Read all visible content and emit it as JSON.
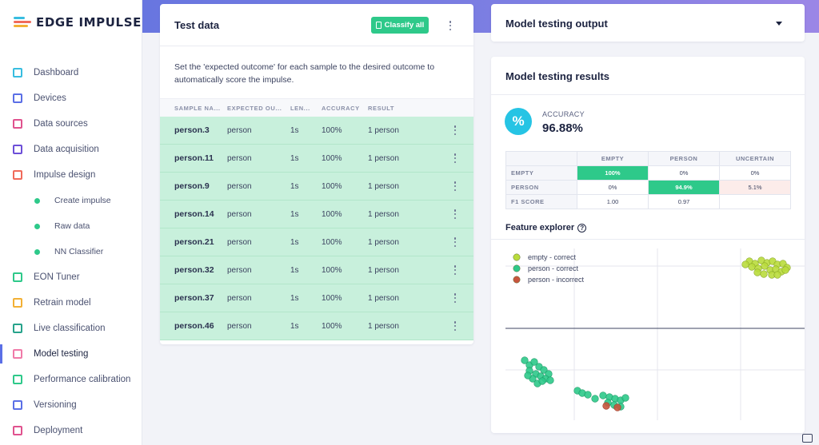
{
  "brand": {
    "name": "EDGE IMPULSE"
  },
  "sidebar": {
    "items": [
      {
        "label": "Dashboard",
        "icon": "monitor-icon",
        "color": "#38bde0"
      },
      {
        "label": "Devices",
        "icon": "chip-icon",
        "color": "#5b6fe6"
      },
      {
        "label": "Data sources",
        "icon": "wand-icon",
        "color": "#e0528e"
      },
      {
        "label": "Data acquisition",
        "icon": "database-icon",
        "color": "#6d4fd8"
      },
      {
        "label": "Impulse design",
        "icon": "pulse-icon",
        "color": "#f06a5a"
      },
      {
        "label": "Create impulse",
        "sub": true
      },
      {
        "label": "Raw data",
        "sub": true
      },
      {
        "label": "NN Classifier",
        "sub": true
      },
      {
        "label": "EON Tuner",
        "icon": "gauge-icon",
        "color": "#2ec98a"
      },
      {
        "label": "Retrain model",
        "icon": "shuffle-icon",
        "color": "#f2b035"
      },
      {
        "label": "Live classification",
        "icon": "signal-icon",
        "color": "#27a38b"
      },
      {
        "label": "Model testing",
        "icon": "clipboard-icon",
        "color": "#f07aa8",
        "active": true
      },
      {
        "label": "Performance calibration",
        "icon": "chart-icon",
        "color": "#2ec98a"
      },
      {
        "label": "Versioning",
        "icon": "branch-icon",
        "color": "#5b6fe6"
      },
      {
        "label": "Deployment",
        "icon": "box-icon",
        "color": "#e0528e"
      }
    ]
  },
  "test_data": {
    "title": "Test data",
    "classify_label": "Classify all",
    "description": "Set the 'expected outcome' for each sample to the desired outcome to automatically score the impulse.",
    "columns": [
      "SAMPLE NA...",
      "EXPECTED OU...",
      "LEN...",
      "ACCURACY",
      "RESULT"
    ],
    "rows": [
      {
        "name": "person.3",
        "expected": "person",
        "length": "1s",
        "accuracy": "100%",
        "result": "1 person"
      },
      {
        "name": "person.11",
        "expected": "person",
        "length": "1s",
        "accuracy": "100%",
        "result": "1 person"
      },
      {
        "name": "person.9",
        "expected": "person",
        "length": "1s",
        "accuracy": "100%",
        "result": "1 person"
      },
      {
        "name": "person.14",
        "expected": "person",
        "length": "1s",
        "accuracy": "100%",
        "result": "1 person"
      },
      {
        "name": "person.21",
        "expected": "person",
        "length": "1s",
        "accuracy": "100%",
        "result": "1 person"
      },
      {
        "name": "person.32",
        "expected": "person",
        "length": "1s",
        "accuracy": "100%",
        "result": "1 person"
      },
      {
        "name": "person.37",
        "expected": "person",
        "length": "1s",
        "accuracy": "100%",
        "result": "1 person"
      },
      {
        "name": "person.46",
        "expected": "person",
        "length": "1s",
        "accuracy": "100%",
        "result": "1 person"
      }
    ]
  },
  "output": {
    "title": "Model testing output"
  },
  "results": {
    "title": "Model testing results",
    "accuracy_label": "ACCURACY",
    "accuracy_value": "96.88%",
    "accuracy_symbol": "%",
    "matrix": {
      "col_headers": [
        "EMPTY",
        "PERSON",
        "UNCERTAIN"
      ],
      "rows": [
        {
          "label": "EMPTY",
          "cells": [
            "100%",
            "0%",
            "0%"
          ]
        },
        {
          "label": "PERSON",
          "cells": [
            "0%",
            "94.9%",
            "5.1%"
          ]
        },
        {
          "label": "F1 SCORE",
          "cells": [
            "1.00",
            "0.97",
            ""
          ]
        }
      ]
    },
    "feature_explorer": {
      "title": "Feature explorer",
      "help_symbol": "?",
      "legend": [
        {
          "label": "empty - correct",
          "color": "#b9dc3c"
        },
        {
          "label": "person - correct",
          "color": "#2ec98a"
        },
        {
          "label": "person - incorrect",
          "color": "#c8553d"
        }
      ]
    }
  },
  "colors": {
    "accent": "#5b6fe6",
    "correct_green": "#2ec98a",
    "row_green": "#c8f0dc",
    "accuracy_cyan": "#26c4e4"
  }
}
